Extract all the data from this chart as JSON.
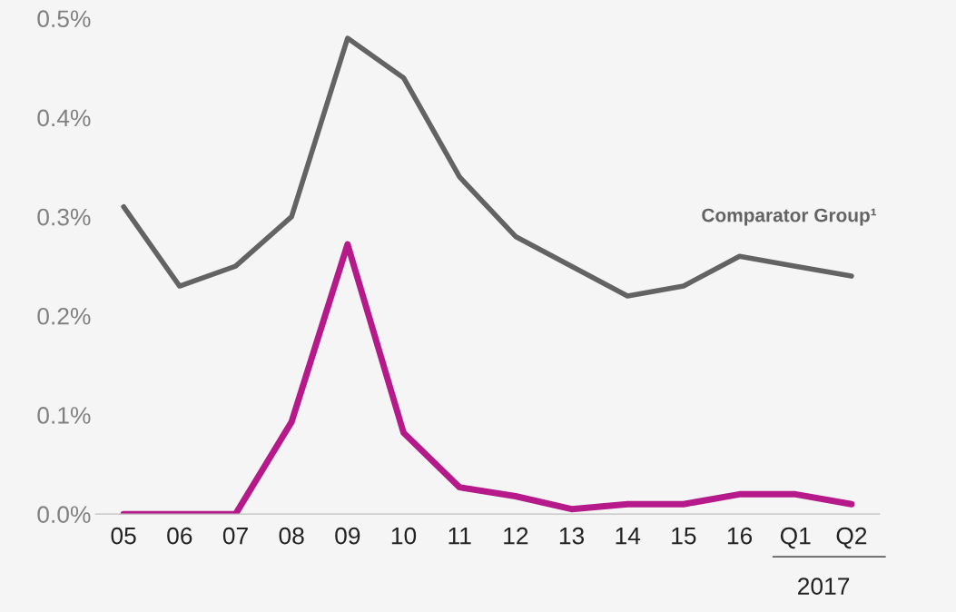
{
  "chart_data": {
    "type": "line",
    "categories": [
      "05",
      "06",
      "07",
      "08",
      "09",
      "10",
      "11",
      "12",
      "13",
      "14",
      "15",
      "16",
      "Q1",
      "Q2"
    ],
    "series": [
      {
        "name": "Comparator Group¹",
        "color": "#636363",
        "values": [
          0.31,
          0.23,
          0.25,
          0.3,
          0.48,
          0.44,
          0.34,
          0.28,
          0.25,
          0.22,
          0.23,
          0.26,
          0.25,
          0.24
        ]
      },
      {
        "color": "#b5198a",
        "values": [
          0,
          0,
          0,
          0.093,
          0.272,
          0.082,
          0.027,
          0.018,
          0.005,
          0.01,
          0.01,
          0.02,
          0.02,
          0.01
        ]
      }
    ],
    "ylim": [
      0,
      0.5
    ],
    "yticks": [
      {
        "value": 0,
        "label": "0.0%"
      },
      {
        "value": 0.1,
        "label": "0.1%"
      },
      {
        "value": 0.2,
        "label": "0.2%"
      },
      {
        "value": 0.3,
        "label": "0.3%"
      },
      {
        "value": 0.4,
        "label": "0.4%"
      },
      {
        "value": 0.5,
        "label": "0.5%"
      }
    ],
    "annotations": [
      "2017"
    ],
    "grid": false,
    "legend": false,
    "marker": "none",
    "line_style": "solid"
  }
}
